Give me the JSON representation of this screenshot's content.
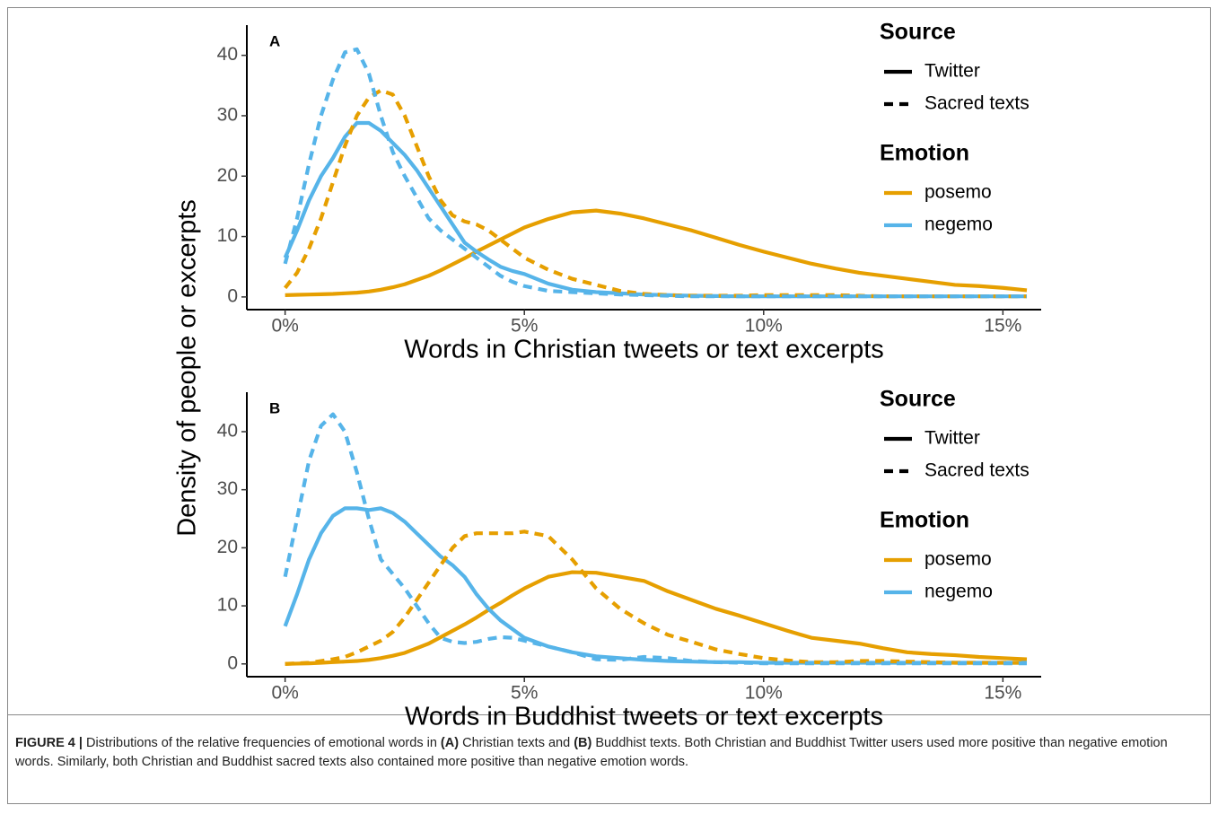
{
  "ylabel": "Density of people or excerpts",
  "chart_data": [
    {
      "type": "line",
      "panel": "A",
      "xlabel": "Words in Christian tweets or text excerpts",
      "x": [
        0,
        0.25,
        0.5,
        0.75,
        1,
        1.25,
        1.5,
        1.75,
        2,
        2.25,
        2.5,
        2.75,
        3,
        3.25,
        3.5,
        3.75,
        4,
        4.25,
        4.5,
        4.75,
        5,
        5.5,
        6,
        6.5,
        7,
        7.5,
        8,
        8.5,
        9,
        9.5,
        10,
        10.5,
        11,
        11.5,
        12,
        12.5,
        13,
        13.5,
        14,
        14.5,
        15,
        15.5
      ],
      "xlim": [
        -0.8,
        15.8
      ],
      "xticks": [
        {
          "value": 0,
          "label": "0%"
        },
        {
          "value": 5,
          "label": "5%"
        },
        {
          "value": 10,
          "label": "10%"
        },
        {
          "value": 15,
          "label": "15%"
        }
      ],
      "ylim": [
        -2.1,
        45
      ],
      "yticks": [
        0,
        10,
        20,
        30,
        40
      ],
      "series": [
        {
          "color": "#E69F00",
          "dash": "solid",
          "values": [
            0.3,
            0.35,
            0.4,
            0.45,
            0.5,
            0.6,
            0.7,
            0.9,
            1.2,
            1.6,
            2.1,
            2.8,
            3.5,
            4.4,
            5.4,
            6.4,
            7.5,
            8.5,
            9.5,
            10.5,
            11.5,
            12.9,
            14,
            14.3,
            13.8,
            13,
            12,
            11,
            9.8,
            8.6,
            7.5,
            6.5,
            5.5,
            4.7,
            4,
            3.5,
            3,
            2.5,
            2,
            1.8,
            1.5,
            1.1
          ]
        },
        {
          "color": "#56B4E9",
          "dash": "solid",
          "values": [
            6.5,
            11,
            16,
            20,
            23,
            26.5,
            28.8,
            28.8,
            27.5,
            25.5,
            23.5,
            21,
            18,
            15,
            12,
            9,
            7.5,
            6.2,
            5,
            4.3,
            3.8,
            2.2,
            1.2,
            0.8,
            0.6,
            0.4,
            0.3,
            0.2,
            0.15,
            0.1,
            0.1,
            0.1,
            0.1,
            0.1,
            0.1,
            0.1,
            0.1,
            0.1,
            0.1,
            0.1,
            0.1,
            0.1
          ]
        },
        {
          "color": "#E69F00",
          "dash": "dashed",
          "values": [
            1.5,
            4,
            8,
            13,
            19,
            25,
            30,
            33,
            34.2,
            33.5,
            30,
            25,
            20,
            16,
            13.5,
            12.5,
            12,
            11,
            9.5,
            8,
            6.5,
            4.5,
            3,
            2,
            1,
            0.5,
            0.3,
            0.2,
            0.2,
            0.2,
            0.3,
            0.3,
            0.3,
            0.3,
            0.2,
            0.1,
            0.1,
            0.1,
            0.1,
            0.1,
            0.1,
            0.1
          ]
        },
        {
          "color": "#56B4E9",
          "dash": "dashed",
          "values": [
            5.5,
            13,
            22,
            30,
            36,
            40.5,
            41,
            37,
            30,
            24,
            20,
            16.5,
            13,
            11,
            9.5,
            8,
            6.5,
            5,
            3.5,
            2.5,
            1.8,
            1,
            0.8,
            0.6,
            0.4,
            0.3,
            0.2,
            0.1,
            0.1,
            0.1,
            0.1,
            0.1,
            0.1,
            0.1,
            0.1,
            0.1,
            0.1,
            0.1,
            0.1,
            0.1,
            0.1,
            0.1
          ]
        }
      ],
      "legend": [
        {
          "title": "Source",
          "items": [
            {
              "label": "Twitter",
              "color": "#000000",
              "dash": "solid"
            },
            {
              "label": "Sacred texts",
              "color": "#000000",
              "dash": "dashed"
            }
          ]
        },
        {
          "title": "Emotion",
          "items": [
            {
              "label": "posemo",
              "color": "#E69F00",
              "dash": "solid"
            },
            {
              "label": "negemo",
              "color": "#56B4E9",
              "dash": "solid"
            }
          ]
        }
      ]
    },
    {
      "type": "line",
      "panel": "B",
      "xlabel": "Words in Buddhist tweets or text excerpts",
      "x": [
        0,
        0.25,
        0.5,
        0.75,
        1,
        1.25,
        1.5,
        1.75,
        2,
        2.25,
        2.5,
        2.75,
        3,
        3.25,
        3.5,
        3.75,
        4,
        4.25,
        4.5,
        4.75,
        5,
        5.5,
        6,
        6.5,
        7,
        7.5,
        8,
        8.5,
        9,
        9.5,
        10,
        10.5,
        11,
        11.5,
        12,
        12.5,
        13,
        13.5,
        14,
        14.5,
        15,
        15.5
      ],
      "xlim": [
        -0.8,
        15.8
      ],
      "xticks": [
        {
          "value": 0,
          "label": "0%"
        },
        {
          "value": 5,
          "label": "5%"
        },
        {
          "value": 10,
          "label": "10%"
        },
        {
          "value": 15,
          "label": "15%"
        }
      ],
      "ylim": [
        -2.2,
        46.8
      ],
      "yticks": [
        0,
        10,
        20,
        30,
        40
      ],
      "series": [
        {
          "color": "#E69F00",
          "dash": "solid",
          "values": [
            0,
            0.05,
            0.1,
            0.2,
            0.3,
            0.4,
            0.5,
            0.7,
            1,
            1.4,
            1.9,
            2.7,
            3.5,
            4.6,
            5.7,
            6.8,
            8,
            9.3,
            10.5,
            11.8,
            13,
            15,
            15.8,
            15.7,
            15,
            14.3,
            12.5,
            11,
            9.5,
            8.3,
            7,
            5.7,
            4.5,
            4,
            3.5,
            2.7,
            2,
            1.7,
            1.5,
            1.2,
            1,
            0.8
          ]
        },
        {
          "color": "#56B4E9",
          "dash": "solid",
          "values": [
            6.5,
            12,
            18,
            22.5,
            25.5,
            26.8,
            26.8,
            26.5,
            26.8,
            26,
            24.5,
            22.5,
            20.5,
            18.5,
            17,
            15,
            12,
            9.5,
            7.5,
            6,
            4.5,
            3,
            2,
            1.3,
            1,
            0.7,
            0.5,
            0.4,
            0.3,
            0.3,
            0.2,
            0.2,
            0.2,
            0.2,
            0.2,
            0.2,
            0.2,
            0.2,
            0.2,
            0.2,
            0.2,
            0.2
          ]
        },
        {
          "color": "#E69F00",
          "dash": "dashed",
          "values": [
            0,
            0.1,
            0.2,
            0.5,
            0.8,
            1.2,
            2,
            3,
            4,
            5.5,
            8,
            11,
            14,
            17,
            20,
            22,
            22.5,
            22.5,
            22.5,
            22.5,
            22.8,
            22,
            18,
            13,
            9.5,
            7,
            5,
            3.8,
            2.5,
            1.7,
            1,
            0.6,
            0.3,
            0.3,
            0.5,
            0.5,
            0.4,
            0.3,
            0.2,
            0.2,
            0.2,
            0.2
          ]
        },
        {
          "color": "#56B4E9",
          "dash": "dashed",
          "values": [
            15,
            25,
            35,
            41,
            43,
            40,
            33,
            25,
            18,
            15.5,
            13,
            10,
            7,
            4.5,
            3.8,
            3.6,
            3.8,
            4.3,
            4.6,
            4.5,
            4,
            3,
            2,
            0.8,
            0.7,
            1.2,
            1,
            0.5,
            0.3,
            0.2,
            0.1,
            0.1,
            0.1,
            0.1,
            0.1,
            0.1,
            0.1,
            0.1,
            0.1,
            0.1,
            0.1,
            0.1
          ]
        }
      ],
      "legend": [
        {
          "title": "Source",
          "items": [
            {
              "label": "Twitter",
              "color": "#000000",
              "dash": "solid"
            },
            {
              "label": "Sacred texts",
              "color": "#000000",
              "dash": "dashed"
            }
          ]
        },
        {
          "title": "Emotion",
          "items": [
            {
              "label": "posemo",
              "color": "#E69F00",
              "dash": "solid"
            },
            {
              "label": "negemo",
              "color": "#56B4E9",
              "dash": "solid"
            }
          ]
        }
      ]
    }
  ],
  "caption": [
    {
      "text": "FIGURE 4 |",
      "bold": true
    },
    {
      "text": " Distributions of the relative frequencies of emotional words in ",
      "bold": false
    },
    {
      "text": "(A)",
      "bold": true
    },
    {
      "text": " Christian texts and ",
      "bold": false
    },
    {
      "text": "(B)",
      "bold": true
    },
    {
      "text": " Buddhist texts. Both Christian and Buddhist Twitter users used more positive than negative emotion words. Similarly, both Christian and Buddhist sacred texts also contained more positive than negative emotion words.",
      "bold": false
    }
  ]
}
